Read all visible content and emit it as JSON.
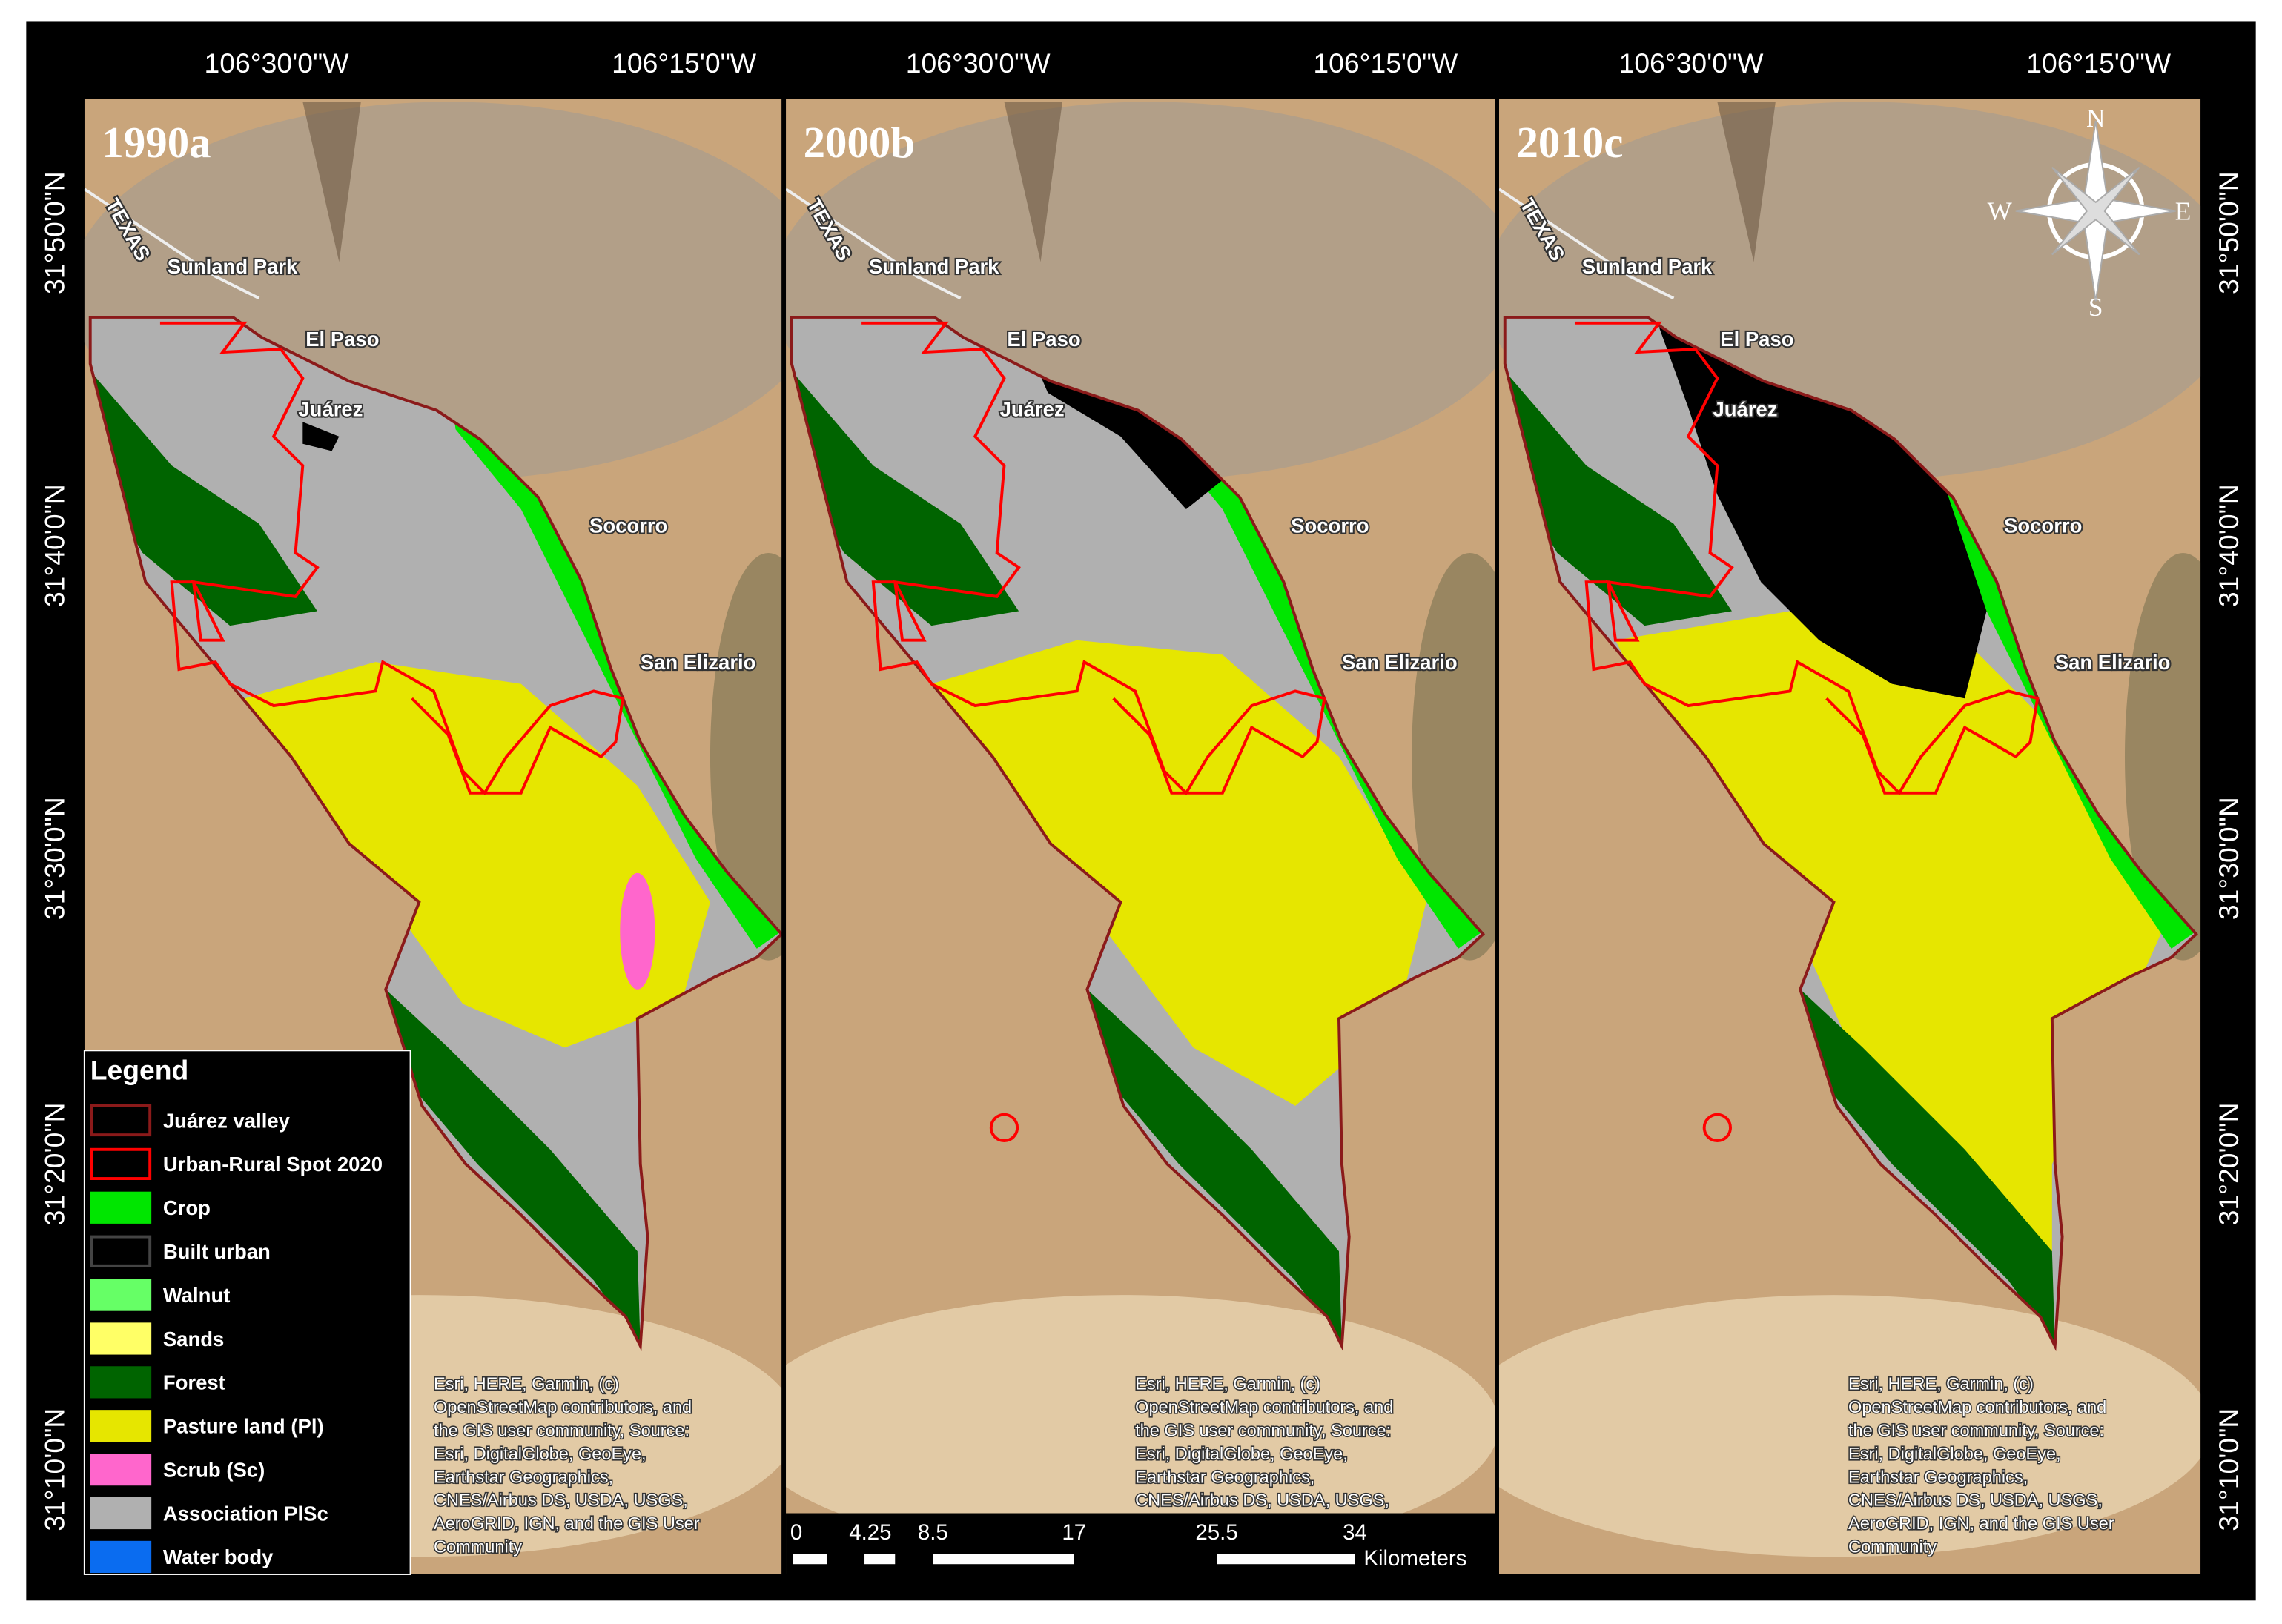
{
  "panels": [
    {
      "label": "1990a"
    },
    {
      "label": "2000b"
    },
    {
      "label": "2010c"
    }
  ],
  "top_coordinates": [
    "106°30'0\"W",
    "106°15'0\"W"
  ],
  "latitude_coordinates": [
    "31°50'0\"N",
    "31°40'0\"N",
    "31°30'0\"N",
    "31°20'0\"N",
    "31°10'0\"N"
  ],
  "place_labels": [
    "TEXAS",
    "Sunland Park",
    "El Paso",
    "Juárez",
    "Socorro",
    "San Elizario"
  ],
  "legend": {
    "title": "Legend",
    "items": [
      {
        "label": "Juárez valley",
        "color": "#000000",
        "stroke": "#8b1a1a"
      },
      {
        "label": "Urban-Rural Spot 2020",
        "color": "#000000",
        "stroke": "#ff0000"
      },
      {
        "label": "Crop",
        "color": "#00e600",
        "stroke": "#00e600"
      },
      {
        "label": "Built urban",
        "color": "#000000",
        "stroke": "#444444"
      },
      {
        "label": "Walnut",
        "color": "#66ff66",
        "stroke": "#66ff66"
      },
      {
        "label": "Sands",
        "color": "#ffff66",
        "stroke": "#ffff66"
      },
      {
        "label": "Forest",
        "color": "#006400",
        "stroke": "#006400"
      },
      {
        "label": "Pasture land (Pl)",
        "color": "#e6e600",
        "stroke": "#e6e600"
      },
      {
        "label": "Scrub (Sc)",
        "color": "#ff66cc",
        "stroke": "#ff66cc"
      },
      {
        "label": "Association PlSc",
        "color": "#b0b0b0",
        "stroke": "#b0b0b0"
      },
      {
        "label": "Water body",
        "color": "#0a6cf0",
        "stroke": "#0a6cf0"
      }
    ]
  },
  "attribution_lines": [
    "Esri, HERE, Garmin, (c)",
    "OpenStreetMap contributors, and",
    "the GIS user community, Source:",
    "Esri, DigitalGlobe, GeoEye,",
    "Earthstar Geographics,",
    "CNES/Airbus DS, USDA, USGS,",
    "AeroGRID, IGN, and the GIS User",
    "Community"
  ],
  "scale_bar": {
    "ticks": [
      "0",
      "4.25",
      "8.5",
      "17",
      "25.5",
      "34"
    ],
    "unit": "Kilometers"
  },
  "compass": {
    "north": "N",
    "south": "S",
    "west": "W",
    "east": "E"
  }
}
